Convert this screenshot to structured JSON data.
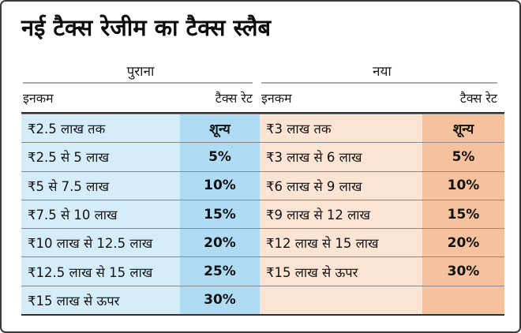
{
  "title": "नई टैक्स रेजीम का टैक्स स्लैब",
  "colors": {
    "old_income_bg": "#d5edf9",
    "old_rate_bg": "#afdcf4",
    "new_income_bg": "#fbe4d4",
    "new_rate_bg": "#f6c29d",
    "table_border_dark": "#2e2e2e",
    "row_separator": "#8a8a8a",
    "header_line": "#ababab",
    "frame_border": "#3a3a3a",
    "text": "#121212"
  },
  "chart_data": [
    {
      "type": "table",
      "title": "पुराना",
      "columns": [
        "इनकम",
        "टैक्स रेट"
      ],
      "rows": [
        [
          "₹2.5 लाख तक",
          "शून्य"
        ],
        [
          "₹2.5 से 5 लाख",
          "5%"
        ],
        [
          "₹5 से 7.5 लाख",
          "10%"
        ],
        [
          "₹7.5 से 10 लाख",
          "15%"
        ],
        [
          "₹10 लाख से 12.5 लाख",
          "20%"
        ],
        [
          "₹12.5 लाख से 15 लाख",
          "25%"
        ],
        [
          "₹15 लाख से ऊपर",
          "30%"
        ]
      ]
    },
    {
      "type": "table",
      "title": "नया",
      "columns": [
        "इनकम",
        "टैक्स रेट"
      ],
      "rows": [
        [
          "₹3 लाख तक",
          "शून्य"
        ],
        [
          "₹3 लाख से 6 लाख",
          "5%"
        ],
        [
          "₹6 लाख से 9 लाख",
          "10%"
        ],
        [
          "₹9 लाख से 12 लाख",
          "15%"
        ],
        [
          "₹12 लाख से 15 लाख",
          "20%"
        ],
        [
          "₹15 लाख से ऊपर",
          "30%"
        ],
        [
          "",
          ""
        ]
      ]
    }
  ]
}
